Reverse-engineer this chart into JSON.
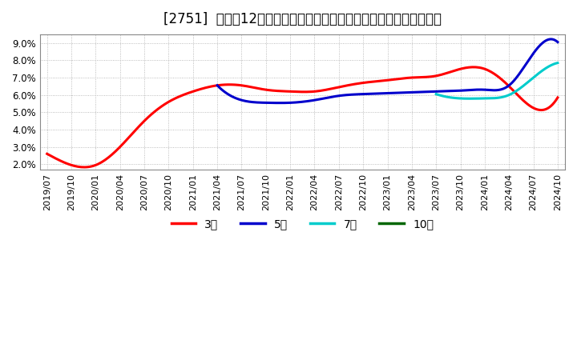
{
  "title": "[2751]  売上高12か月移動合計の対前年同期増減率の標準偏差の推移",
  "title_fontsize": 12,
  "ylim": [
    1.7,
    9.5
  ],
  "yticks": [
    2.0,
    3.0,
    4.0,
    5.0,
    6.0,
    7.0,
    8.0,
    9.0
  ],
  "line_colors": {
    "3年": "#ff0000",
    "5年": "#0000cc",
    "7年": "#00cccc",
    "10年": "#006600"
  },
  "series": {
    "3年": {
      "x": [
        0,
        1,
        2,
        3,
        4,
        5,
        6,
        7,
        8,
        9,
        10,
        11,
        12,
        13,
        14,
        15,
        16,
        17,
        18,
        19,
        20,
        21
      ],
      "y": [
        2.6,
        1.95,
        1.95,
        3.0,
        4.5,
        5.6,
        6.2,
        6.55,
        6.55,
        6.3,
        6.2,
        6.2,
        6.45,
        6.7,
        6.85,
        7.0,
        7.1,
        7.5,
        7.5,
        6.5,
        5.25,
        5.85
      ]
    },
    "5年": {
      "x": [
        7,
        8,
        9,
        10,
        11,
        12,
        13,
        14,
        15,
        16,
        17,
        18,
        19,
        20,
        21
      ],
      "y": [
        6.55,
        5.7,
        5.55,
        5.55,
        5.7,
        5.95,
        6.05,
        6.1,
        6.15,
        6.2,
        6.25,
        6.3,
        6.55,
        8.4,
        9.05
      ]
    },
    "7年": {
      "x": [
        16,
        17,
        18,
        19,
        20,
        21
      ],
      "y": [
        6.05,
        5.8,
        5.8,
        6.0,
        7.0,
        7.85
      ]
    },
    "10年": {
      "x": [],
      "y": []
    }
  },
  "x_tick_labels": [
    "2019/07",
    "2019/10",
    "2020/01",
    "2020/04",
    "2020/07",
    "2020/10",
    "2021/01",
    "2021/04",
    "2021/07",
    "2021/10",
    "2022/01",
    "2022/04",
    "2022/07",
    "2022/10",
    "2023/01",
    "2023/04",
    "2023/07",
    "2023/10",
    "2024/01",
    "2024/04",
    "2024/07",
    "2024/10"
  ],
  "background_color": "#ffffff",
  "grid_color": "#aaaaaa",
  "legend_labels": [
    "3年",
    "5年",
    "7年",
    "10年"
  ]
}
